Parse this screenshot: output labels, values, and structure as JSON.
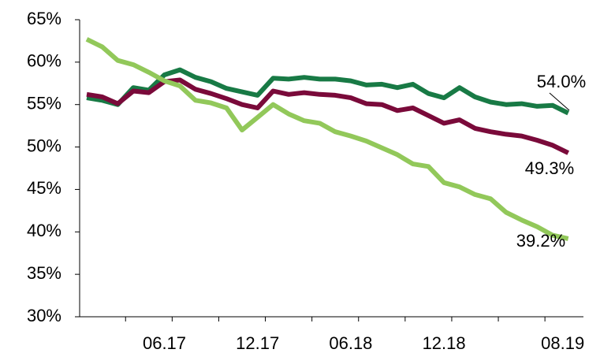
{
  "chart_data": {
    "type": "line",
    "categories": [
      null,
      null,
      null,
      null,
      null,
      "06.17",
      null,
      null,
      null,
      null,
      null,
      "12.17",
      null,
      null,
      null,
      null,
      null,
      "06.18",
      null,
      null,
      null,
      null,
      null,
      "12.18",
      null,
      null,
      null,
      null,
      null,
      null,
      null,
      "08.19"
    ],
    "series": [
      {
        "color": "#187a45",
        "values": [
          55.8,
          55.5,
          55.0,
          57.0,
          56.7,
          58.5,
          59.1,
          58.2,
          57.7,
          56.9,
          56.5,
          56.1,
          58.1,
          58.0,
          58.2,
          58.0,
          58.0,
          57.8,
          57.3,
          57.4,
          57.0,
          57.4,
          56.3,
          55.8,
          57.0,
          55.9,
          55.3,
          55.0,
          55.1,
          54.8,
          54.9,
          54.0
        ],
        "value_labels": [
          null,
          null,
          null,
          null,
          null,
          null,
          null,
          null,
          null,
          null,
          null,
          null,
          null,
          null,
          null,
          null,
          null,
          null,
          null,
          null,
          null,
          null,
          null,
          null,
          null,
          null,
          null,
          null,
          null,
          null,
          null,
          "54.0%"
        ]
      },
      {
        "color": "#7a0a3a",
        "values": [
          56.2,
          55.9,
          55.1,
          56.6,
          56.4,
          57.7,
          57.9,
          56.8,
          56.3,
          55.7,
          55.0,
          54.6,
          56.6,
          56.2,
          56.4,
          56.2,
          56.1,
          55.8,
          55.1,
          55.0,
          54.3,
          54.6,
          53.7,
          52.8,
          53.2,
          52.2,
          51.8,
          51.5,
          51.3,
          50.8,
          50.2,
          49.3
        ],
        "value_labels": [
          null,
          null,
          null,
          null,
          null,
          null,
          null,
          null,
          null,
          null,
          null,
          null,
          null,
          null,
          null,
          null,
          null,
          null,
          null,
          null,
          null,
          null,
          null,
          null,
          null,
          null,
          null,
          null,
          null,
          null,
          null,
          "49.3%"
        ]
      },
      {
        "color": "#92c85a",
        "values": [
          62.7,
          61.8,
          60.2,
          59.7,
          58.8,
          57.8,
          57.2,
          55.5,
          55.2,
          54.6,
          52.0,
          53.5,
          55.0,
          53.9,
          53.1,
          52.8,
          51.8,
          51.3,
          50.7,
          49.9,
          49.1,
          48.0,
          47.7,
          45.8,
          45.3,
          44.4,
          43.9,
          42.3,
          41.4,
          40.6,
          39.6,
          39.2
        ],
        "value_labels": [
          null,
          null,
          null,
          null,
          null,
          null,
          null,
          null,
          null,
          null,
          null,
          null,
          null,
          null,
          null,
          null,
          null,
          null,
          null,
          null,
          null,
          null,
          null,
          null,
          null,
          null,
          null,
          null,
          null,
          null,
          null,
          "39.2%"
        ]
      }
    ],
    "ylim": [
      30,
      65
    ],
    "yticks": [
      {
        "value": 30,
        "label": "30%"
      },
      {
        "value": 35,
        "label": "35%"
      },
      {
        "value": 40,
        "label": "40%"
      },
      {
        "value": 45,
        "label": "45%"
      },
      {
        "value": 50,
        "label": "50%"
      },
      {
        "value": 55,
        "label": "55%"
      },
      {
        "value": 60,
        "label": "60%"
      },
      {
        "value": 65,
        "label": "65%"
      }
    ]
  }
}
